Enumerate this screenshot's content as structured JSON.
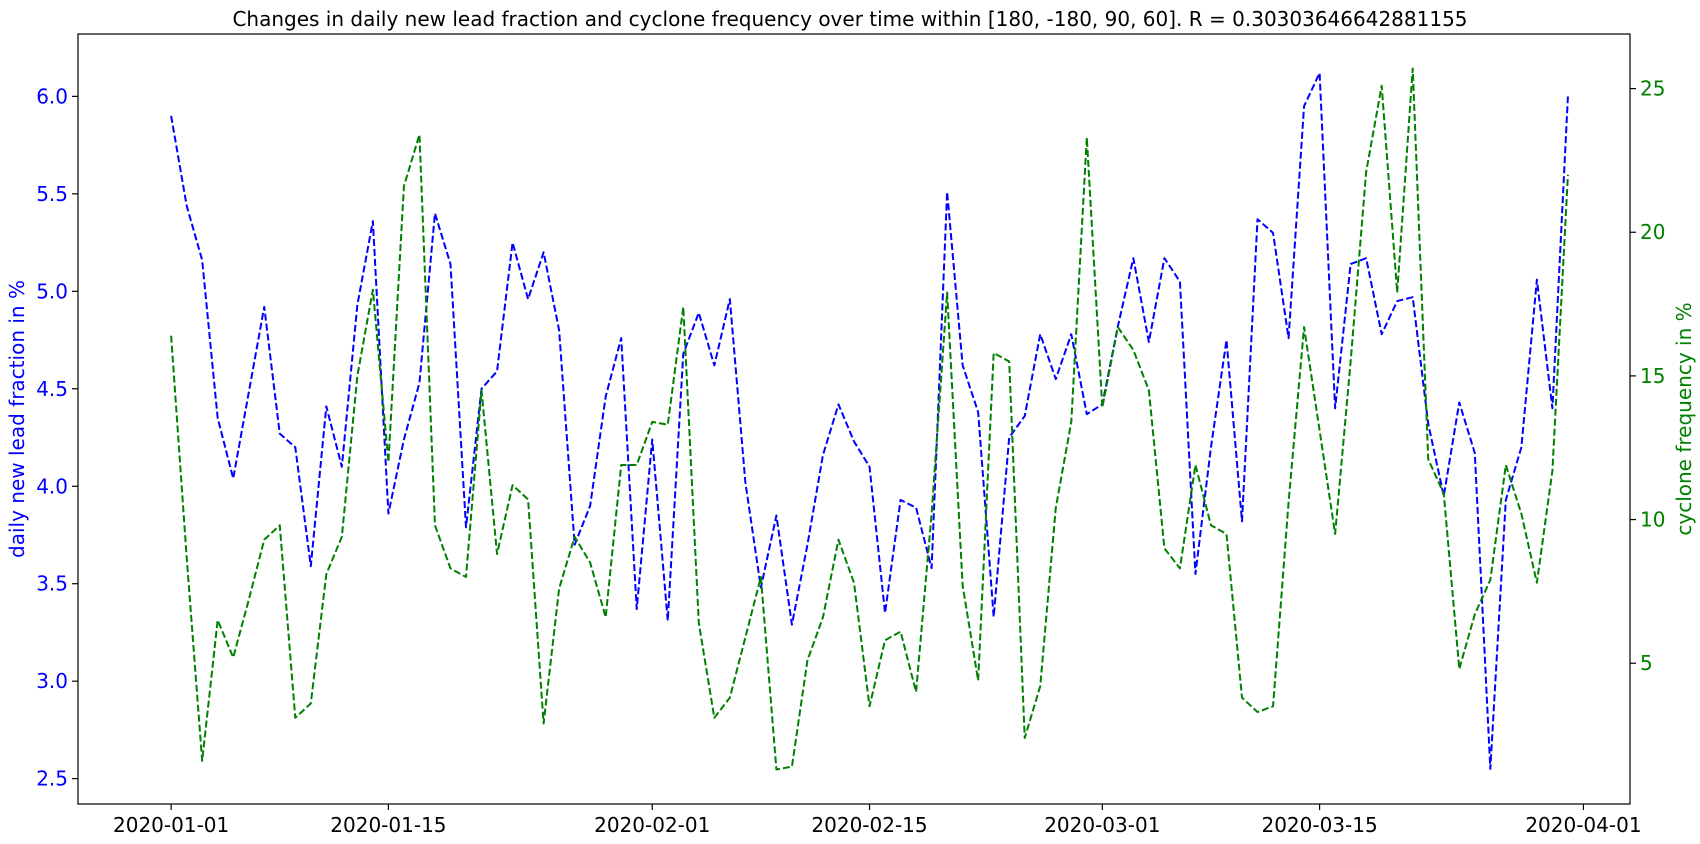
{
  "chart_data": {
    "type": "line",
    "title": "Changes in daily new lead fraction and cyclone frequency over time within [180, -180, 90, 60]. R = 0.30303646642881155",
    "xlabel": "",
    "x_tick_labels": [
      "2020-01-01",
      "2020-01-15",
      "2020-02-01",
      "2020-02-15",
      "2020-03-01",
      "2020-03-15",
      "2020-04-01"
    ],
    "x_range": [
      "2019-12-26",
      "2020-04-04"
    ],
    "x": [
      "2020-01-01",
      "2020-01-02",
      "2020-01-03",
      "2020-01-04",
      "2020-01-05",
      "2020-01-06",
      "2020-01-07",
      "2020-01-08",
      "2020-01-09",
      "2020-01-10",
      "2020-01-11",
      "2020-01-12",
      "2020-01-13",
      "2020-01-14",
      "2020-01-15",
      "2020-01-16",
      "2020-01-17",
      "2020-01-18",
      "2020-01-19",
      "2020-01-20",
      "2020-01-21",
      "2020-01-22",
      "2020-01-23",
      "2020-01-24",
      "2020-01-25",
      "2020-01-26",
      "2020-01-27",
      "2020-01-28",
      "2020-01-29",
      "2020-01-30",
      "2020-01-31",
      "2020-02-01",
      "2020-02-02",
      "2020-02-03",
      "2020-02-04",
      "2020-02-05",
      "2020-02-06",
      "2020-02-07",
      "2020-02-08",
      "2020-02-09",
      "2020-02-10",
      "2020-02-11",
      "2020-02-12",
      "2020-02-13",
      "2020-02-14",
      "2020-02-15",
      "2020-02-16",
      "2020-02-17",
      "2020-02-18",
      "2020-02-19",
      "2020-02-20",
      "2020-02-21",
      "2020-02-22",
      "2020-02-23",
      "2020-02-24",
      "2020-02-25",
      "2020-02-26",
      "2020-02-27",
      "2020-02-28",
      "2020-02-29",
      "2020-03-01",
      "2020-03-02",
      "2020-03-03",
      "2020-03-04",
      "2020-03-05",
      "2020-03-06",
      "2020-03-07",
      "2020-03-08",
      "2020-03-09",
      "2020-03-10",
      "2020-03-11",
      "2020-03-12",
      "2020-03-13",
      "2020-03-14",
      "2020-03-15",
      "2020-03-16",
      "2020-03-17",
      "2020-03-18",
      "2020-03-19",
      "2020-03-20",
      "2020-03-21",
      "2020-03-22",
      "2020-03-23",
      "2020-03-24",
      "2020-03-25",
      "2020-03-26",
      "2020-03-27",
      "2020-03-28",
      "2020-03-29",
      "2020-03-30",
      "2020-03-31"
    ],
    "axes": {
      "left": {
        "label": "daily new lead fraction in %",
        "color": "#0000ff",
        "ylim": [
          2.37,
          6.32
        ],
        "ticks": [
          2.5,
          3.0,
          3.5,
          4.0,
          4.5,
          5.0,
          5.5,
          6.0
        ],
        "tick_labels": [
          "2.5",
          "3.0",
          "3.5",
          "4.0",
          "4.5",
          "5.0",
          "5.5",
          "6.0"
        ]
      },
      "right": {
        "label": "cyclone frequency in %",
        "color": "#008000",
        "ylim": [
          0.1,
          26.9
        ],
        "ticks": [
          5,
          10,
          15,
          20,
          25
        ],
        "tick_labels": [
          "5",
          "10",
          "15",
          "20",
          "25"
        ]
      }
    },
    "series": [
      {
        "axis": "left",
        "color": "#0000ff",
        "style": "dashed",
        "values": [
          5.9,
          5.44,
          5.16,
          4.35,
          4.04,
          4.48,
          4.92,
          4.27,
          4.2,
          3.59,
          4.41,
          4.1,
          4.93,
          5.36,
          3.86,
          4.24,
          4.53,
          5.4,
          5.14,
          3.79,
          4.5,
          4.59,
          5.25,
          4.96,
          5.2,
          4.8,
          3.7,
          3.9,
          4.46,
          4.76,
          3.37,
          4.24,
          3.31,
          4.68,
          4.89,
          4.62,
          4.96,
          4.02,
          3.48,
          3.85,
          3.29,
          3.7,
          4.16,
          4.42,
          4.23,
          4.1,
          3.35,
          3.93,
          3.89,
          3.58,
          5.51,
          4.62,
          4.38,
          3.33,
          4.25,
          4.36,
          4.78,
          4.55,
          4.78,
          4.37,
          4.42,
          4.82,
          5.17,
          4.74,
          5.17,
          5.05,
          3.55,
          4.2,
          4.75,
          3.82,
          5.37,
          5.3,
          4.76,
          5.95,
          6.12,
          4.4,
          5.14,
          5.17,
          4.78,
          4.95,
          4.97,
          4.32,
          3.95,
          4.43,
          4.17,
          2.55,
          3.93,
          4.2,
          5.06,
          4.4,
          6.0
        ]
      },
      {
        "axis": "right",
        "color": "#008000",
        "style": "dashed",
        "values": [
          16.4,
          8.7,
          1.6,
          6.5,
          5.2,
          7.2,
          9.3,
          9.8,
          3.1,
          3.6,
          8.1,
          9.4,
          15.0,
          18.0,
          12.0,
          21.6,
          23.4,
          9.8,
          8.3,
          8.0,
          14.5,
          8.8,
          11.2,
          10.7,
          2.9,
          7.6,
          9.4,
          8.5,
          6.6,
          11.9,
          11.9,
          13.4,
          13.3,
          17.4,
          6.4,
          3.1,
          3.8,
          5.9,
          8.0,
          1.3,
          1.4,
          5.1,
          6.6,
          9.3,
          7.8,
          3.5,
          5.8,
          6.1,
          4.0,
          10.2,
          17.9,
          7.7,
          4.4,
          15.8,
          15.5,
          2.4,
          4.2,
          10.4,
          13.4,
          23.3,
          13.9,
          16.7,
          15.9,
          14.5,
          9.0,
          8.3,
          11.9,
          9.8,
          9.5,
          3.8,
          3.3,
          3.5,
          10.6,
          16.7,
          13.1,
          9.5,
          15.5,
          22.1,
          25.1,
          17.9,
          25.7,
          12.1,
          10.9,
          4.8,
          6.7,
          7.9,
          11.9,
          10.2,
          7.8,
          11.7,
          22.0
        ]
      }
    ],
    "grid": false,
    "legend": "none"
  }
}
